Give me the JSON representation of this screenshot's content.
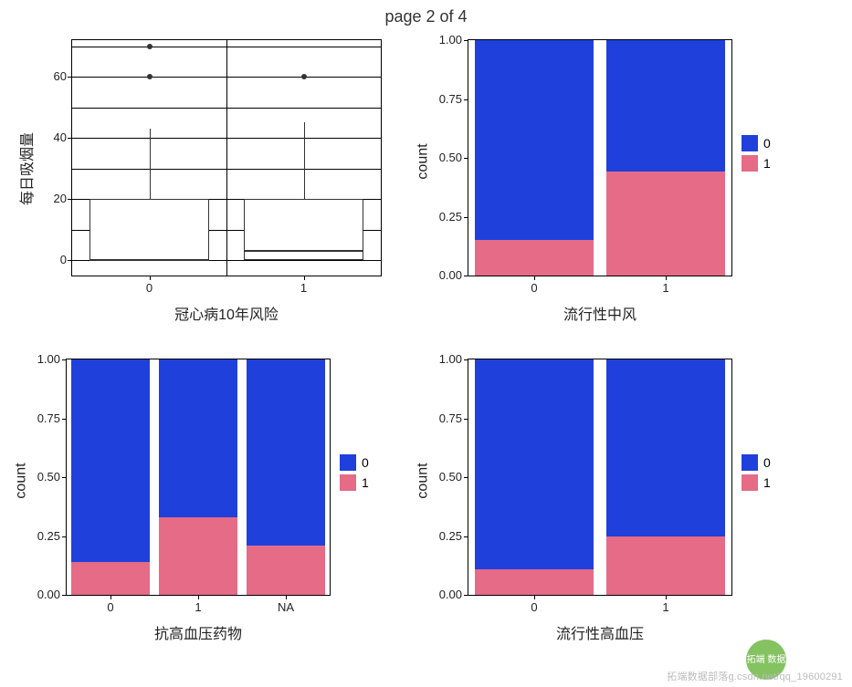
{
  "title": "page 2 of 4",
  "colors": {
    "cat0": "#2040dc",
    "cat1": "#e56b87",
    "boxFill": "#ffffff",
    "boxLine": "#333333",
    "frame": "#000000",
    "bg": "#ffffff",
    "text": "#222222"
  },
  "legend": {
    "items": [
      {
        "label": "0",
        "colorKey": "cat0"
      },
      {
        "label": "1",
        "colorKey": "cat1"
      }
    ]
  },
  "panels": {
    "boxplot": {
      "type": "boxplot",
      "ylabel": "每日吸烟量",
      "xlabel": "冠心病10年风险",
      "categories": [
        "0",
        "1"
      ],
      "ylim": [
        -5,
        72
      ],
      "yticks": [
        0,
        20,
        40,
        60
      ],
      "grid": {
        "horizontal": true,
        "vertical": true,
        "hstep": 10
      },
      "boxes": [
        {
          "q1": 0,
          "median": 0,
          "q3": 20,
          "whiskerLow": 0,
          "whiskerHigh": 43,
          "outliers": [
            60,
            70
          ]
        },
        {
          "q1": 0,
          "median": 3,
          "q3": 20,
          "whiskerLow": 0,
          "whiskerHigh": 45,
          "outliers": [
            60
          ]
        }
      ],
      "boxWidthFrac": 0.78
    },
    "stroke": {
      "type": "stacked-bar",
      "ylabel": "count",
      "xlabel": "流行性中风",
      "categories": [
        "0",
        "1"
      ],
      "ylim": [
        0,
        1.0
      ],
      "yticks": [
        0.0,
        0.25,
        0.5,
        0.75,
        1.0
      ],
      "barWidthFrac": 0.9,
      "bars": [
        {
          "v1": 0.15,
          "v0": 0.85
        },
        {
          "v1": 0.44,
          "v0": 0.56
        }
      ]
    },
    "bpmeds": {
      "type": "stacked-bar",
      "ylabel": "count",
      "xlabel": "抗高血压药物",
      "categories": [
        "0",
        "1",
        "NA"
      ],
      "ylim": [
        0,
        1.0
      ],
      "yticks": [
        0.0,
        0.25,
        0.5,
        0.75,
        1.0
      ],
      "barWidthFrac": 0.9,
      "bars": [
        {
          "v1": 0.14,
          "v0": 0.86
        },
        {
          "v1": 0.33,
          "v0": 0.67
        },
        {
          "v1": 0.21,
          "v0": 0.79
        }
      ]
    },
    "hyp": {
      "type": "stacked-bar",
      "ylabel": "count",
      "xlabel": "流行性高血压",
      "categories": [
        "0",
        "1"
      ],
      "ylim": [
        0,
        1.0
      ],
      "yticks": [
        0.0,
        0.25,
        0.5,
        0.75,
        1.0
      ],
      "barWidthFrac": 0.9,
      "bars": [
        {
          "v1": 0.11,
          "v0": 0.89
        },
        {
          "v1": 0.25,
          "v0": 0.75
        }
      ]
    }
  },
  "watermark": {
    "logoText": "拓端\n数据",
    "text": "拓端数据部落g.csdn.net/qq_19600291"
  }
}
